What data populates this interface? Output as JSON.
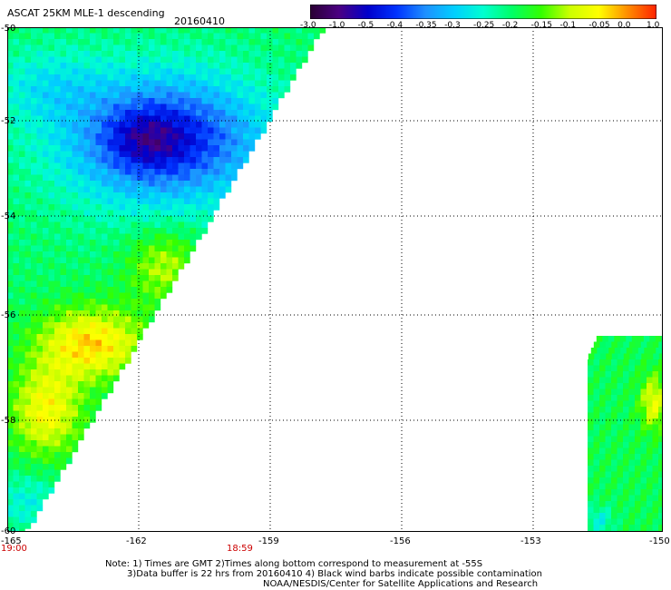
{
  "header": {
    "title": "ASCAT 25KM MLE-1 descending",
    "date": "20160410"
  },
  "colorbar": {
    "labels": [
      "-3.0",
      "-1.0",
      "-0.5",
      "-0.4",
      "-0.35",
      "-0.3",
      "-0.25",
      "-0.2",
      "-0.15",
      "-0.1",
      "-0.05",
      "0.0",
      "1.0"
    ],
    "colors": [
      "#2a0033",
      "#4b0082",
      "#0000cc",
      "#0033ff",
      "#1e90ff",
      "#00cfff",
      "#00ffd0",
      "#00ff66",
      "#33ff00",
      "#ccff00",
      "#ffff00",
      "#ff8c00",
      "#ff2200"
    ]
  },
  "map": {
    "lat_labels": [
      "-50",
      "-52",
      "-54",
      "-56",
      "-58",
      "-60"
    ],
    "lon_labels": [
      "-165",
      "-162",
      "-159",
      "-156",
      "-153",
      "-150"
    ],
    "times": [
      "19:00",
      "18:59"
    ]
  },
  "notes": {
    "line1": "Note: 1) Times are GMT 2)Times along bottom correspond to measurement at -55S",
    "line2": "3)Data buffer is 22 hrs from 20160410 4) Black wind barbs indicate possible contamination",
    "line3": "NOAA/NESDIS/Center for Satellite Applications and Research"
  }
}
